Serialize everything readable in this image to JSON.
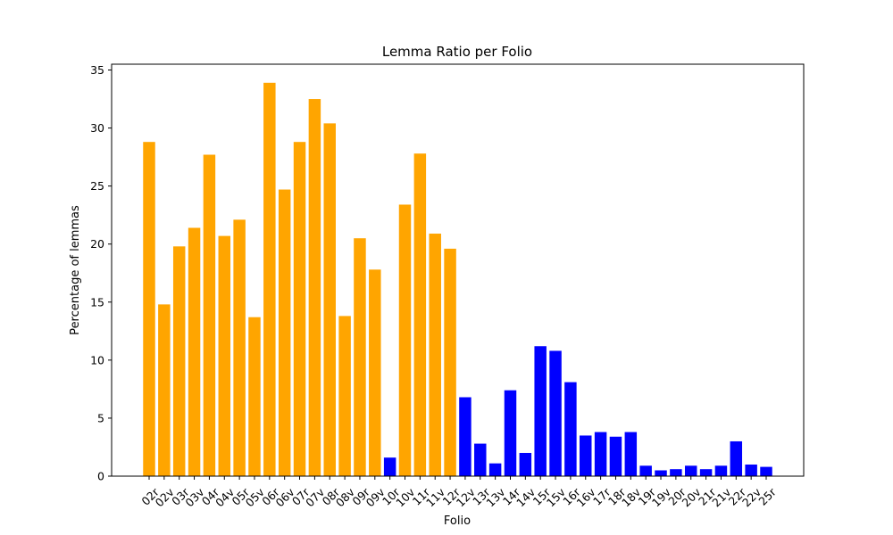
{
  "chart_data": {
    "type": "bar",
    "title": "Lemma Ratio per Folio",
    "xlabel": "Folio",
    "ylabel": "Percentage of lemmas",
    "ylim": [
      0,
      35.5
    ],
    "yticks": [
      0,
      5,
      10,
      15,
      20,
      25,
      30,
      35
    ],
    "grid": false,
    "categories": [
      "02r",
      "02v",
      "03r",
      "03v",
      "04r",
      "04v",
      "05r",
      "05v",
      "06r",
      "06v",
      "07r",
      "07v",
      "08r",
      "08v",
      "09r",
      "09v",
      "10r",
      "10v",
      "11r",
      "11v",
      "12r",
      "12v",
      "13r",
      "13v",
      "14r",
      "14v",
      "15r",
      "15v",
      "16r",
      "16v",
      "17r",
      "18r",
      "18v",
      "19r",
      "19v",
      "20r",
      "20v",
      "21r",
      "21v",
      "22r",
      "22v",
      "25r"
    ],
    "values": [
      28.8,
      14.8,
      19.8,
      21.4,
      27.7,
      20.7,
      22.1,
      13.7,
      33.9,
      24.7,
      28.8,
      32.5,
      30.4,
      13.8,
      20.5,
      17.8,
      1.6,
      23.4,
      27.8,
      20.9,
      19.6,
      6.8,
      2.8,
      1.1,
      7.4,
      2.0,
      11.2,
      10.8,
      8.1,
      3.5,
      3.8,
      3.4,
      3.8,
      0.9,
      0.5,
      0.6,
      0.9,
      0.6,
      0.9,
      3.0,
      1.0,
      0.8
    ],
    "colors": [
      "#ffa500",
      "#ffa500",
      "#ffa500",
      "#ffa500",
      "#ffa500",
      "#ffa500",
      "#ffa500",
      "#ffa500",
      "#ffa500",
      "#ffa500",
      "#ffa500",
      "#ffa500",
      "#ffa500",
      "#ffa500",
      "#ffa500",
      "#ffa500",
      "#0000ff",
      "#ffa500",
      "#ffa500",
      "#ffa500",
      "#ffa500",
      "#0000ff",
      "#0000ff",
      "#0000ff",
      "#0000ff",
      "#0000ff",
      "#0000ff",
      "#0000ff",
      "#0000ff",
      "#0000ff",
      "#0000ff",
      "#0000ff",
      "#0000ff",
      "#0000ff",
      "#0000ff",
      "#0000ff",
      "#0000ff",
      "#0000ff",
      "#0000ff",
      "#0000ff",
      "#0000ff",
      "#0000ff"
    ]
  }
}
